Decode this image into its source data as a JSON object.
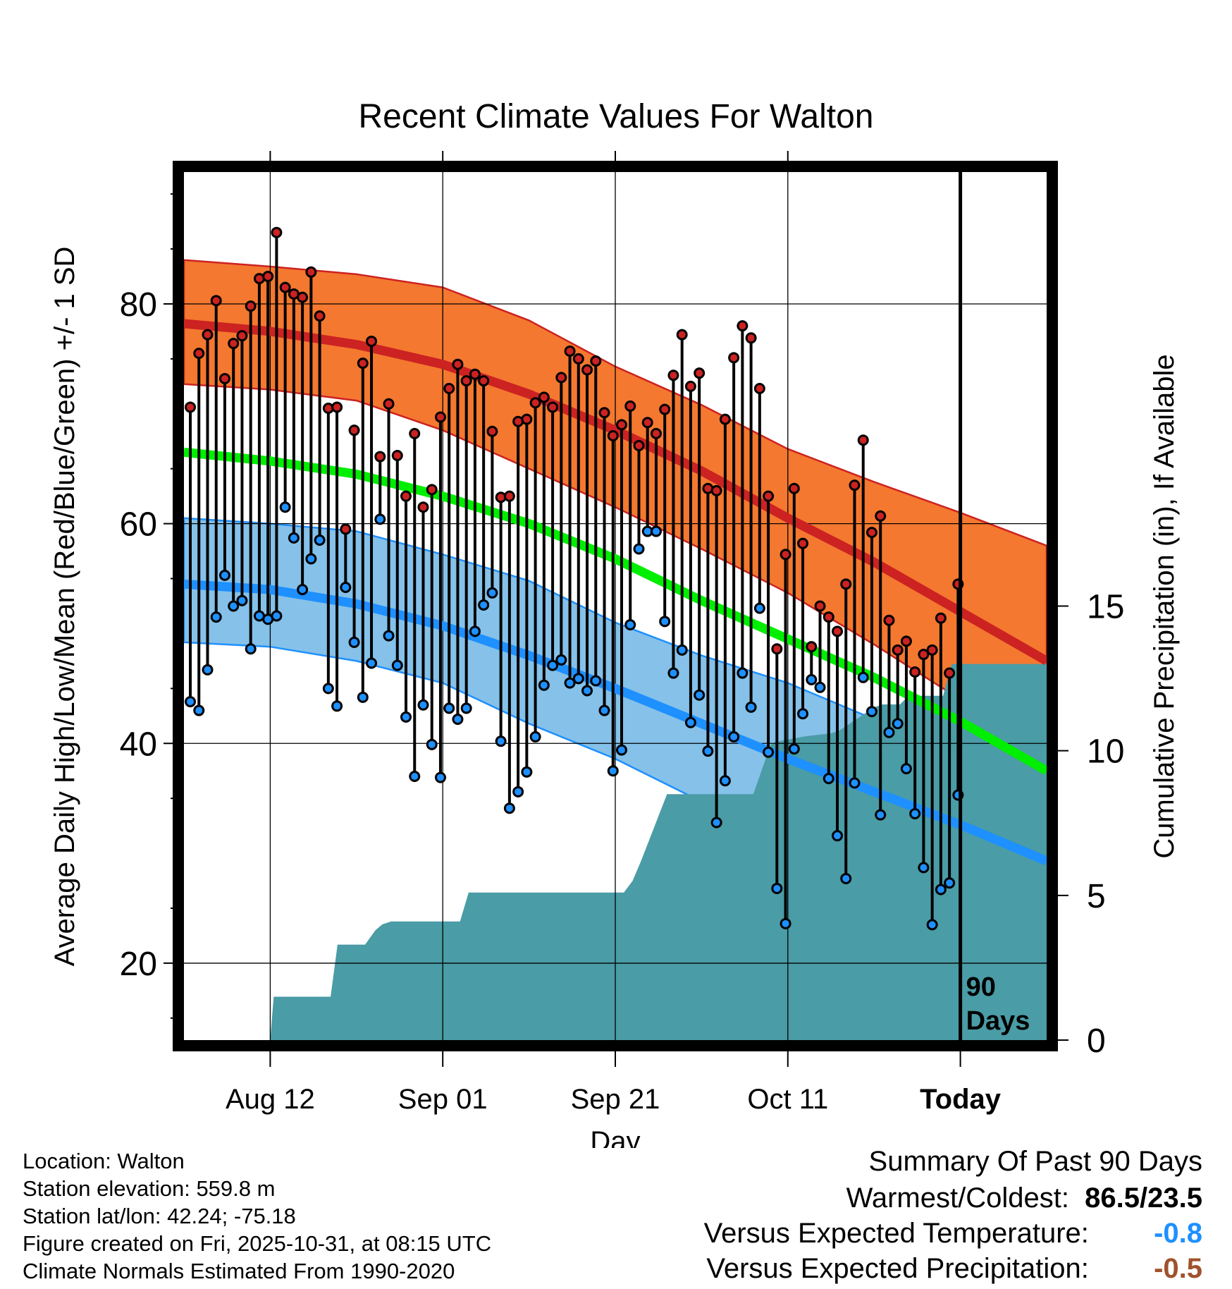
{
  "title": "Recent Climate Values For Walton",
  "footer_left": [
    "Location: Walton",
    "Station elevation: 559.8 m",
    "Station lat/lon: 42.24; -75.18",
    "Figure created on Fri, 2025-10-31, at 08:15 UTC",
    "Climate Normals Estimated From 1990-2020"
  ],
  "summary": {
    "heading": "Summary Of Past 90 Days",
    "warm_cold_label": "Warmest/Coldest:",
    "warm_cold_value": "86.5/23.5",
    "temp_label": "Versus Expected Temperature:",
    "temp_value": "-0.8",
    "prcp_label": "Versus Expected Precipitation:",
    "prcp_value": "-0.5"
  },
  "colors": {
    "high_band": "#F4782F",
    "high_line": "#CC2222",
    "mean_line": "#00EE00",
    "low_band": "#85C1E9",
    "low_line": "#1E90FF",
    "precip_fill": "#4A9CA6",
    "high_marker": "#CC2222",
    "low_marker": "#1E90FF",
    "summary_temp": "#1E90FF",
    "summary_prcp": "#A0522D"
  },
  "chart_data": {
    "type": "line",
    "title": "Recent Climate Values For Walton",
    "xlabel": "Day",
    "ylabel": "Average Daily High/Low/Mean (Red/Blue/Green) +/- 1 SD",
    "y2label": "Cumulative Precipitation (in), If Available",
    "x_range_days": [
      0,
      100
    ],
    "ylim": [
      13,
      92
    ],
    "y2lim": [
      0,
      30
    ],
    "y_ticks": [
      20,
      40,
      60,
      80
    ],
    "y2_ticks": [
      0,
      5,
      10,
      15
    ],
    "x_ticks": [
      {
        "day": 10,
        "label": "Aug 12"
      },
      {
        "day": 30,
        "label": "Sep 01"
      },
      {
        "day": 50,
        "label": "Sep 21"
      },
      {
        "day": 70,
        "label": "Oct 11"
      },
      {
        "day": 90,
        "label": "Today"
      }
    ],
    "today_marker": {
      "day": 90,
      "label_line1": "90",
      "label_line2": "Days"
    },
    "normals": {
      "days": [
        0,
        10,
        20,
        30,
        40,
        50,
        60,
        70,
        80,
        90,
        100
      ],
      "high_mean": [
        78.2,
        77.5,
        76.3,
        74.5,
        71.8,
        68.5,
        64.8,
        60.5,
        56.5,
        52.0,
        47.5
      ],
      "high_sd_upper": [
        84.0,
        83.4,
        82.7,
        81.5,
        78.5,
        74.3,
        70.8,
        66.8,
        63.8,
        61.0,
        58.0
      ],
      "high_sd_lower": [
        72.7,
        72.2,
        71.2,
        68.5,
        65.0,
        61.5,
        57.7,
        53.7,
        49.0,
        44.0,
        38.5
      ],
      "mean": [
        66.5,
        65.7,
        64.5,
        62.5,
        60.0,
        56.8,
        53.0,
        49.5,
        46.0,
        42.0,
        37.5
      ],
      "low_mean": [
        54.5,
        54.0,
        52.7,
        50.7,
        48.0,
        45.0,
        41.8,
        38.6,
        35.6,
        32.6,
        29.3
      ],
      "low_sd_upper": [
        60.5,
        60.0,
        59.3,
        57.2,
        54.8,
        51.0,
        48.0,
        45.5,
        42.2,
        39.0,
        36.5
      ],
      "low_sd_lower": [
        49.2,
        48.8,
        47.5,
        45.5,
        41.8,
        38.6,
        34.7,
        30.5,
        28.5,
        25.0,
        22.5
      ]
    },
    "observed_days": [
      0,
      1,
      2,
      3,
      4,
      5,
      6,
      7,
      8,
      9,
      10,
      11,
      12,
      13,
      14,
      15,
      16,
      17,
      18,
      19,
      20,
      21,
      22,
      23,
      24,
      25,
      26,
      27,
      28,
      29,
      30,
      31,
      32,
      33,
      34,
      35,
      36,
      37,
      38,
      39,
      40,
      41,
      42,
      43,
      44,
      45,
      46,
      47,
      48,
      49,
      50,
      51,
      52,
      53,
      54,
      55,
      56,
      57,
      58,
      59,
      60,
      61,
      62,
      63,
      64,
      65,
      66,
      67,
      68,
      69,
      70,
      71,
      72,
      73,
      74,
      75,
      76,
      77,
      78,
      79,
      80,
      81,
      82,
      83,
      84,
      85,
      86,
      87,
      88,
      89
    ],
    "observed_high": [
      70.6,
      75.5,
      77.2,
      80.3,
      73.2,
      76.4,
      77.1,
      79.8,
      82.3,
      82.5,
      86.5,
      81.5,
      80.9,
      80.6,
      82.9,
      78.9,
      70.5,
      70.6,
      59.5,
      68.5,
      74.6,
      76.6,
      66.1,
      70.9,
      66.2,
      62.5,
      68.2,
      61.5,
      63.1,
      69.7,
      72.3,
      74.5,
      73.0,
      73.6,
      73.0,
      68.4,
      62.4,
      62.5,
      69.3,
      69.5,
      71.0,
      71.5,
      70.6,
      73.3,
      75.7,
      75.0,
      74.0,
      74.8,
      70.1,
      68.0,
      69.0,
      70.7,
      67.1,
      69.2,
      68.2,
      70.4,
      73.5,
      77.2,
      72.5,
      73.7,
      63.2,
      63.0,
      69.5,
      75.1,
      78.0,
      76.9,
      72.3,
      62.5,
      48.6,
      57.2,
      63.2,
      58.2,
      48.8,
      52.5,
      51.5,
      50.2,
      54.5,
      63.5,
      67.6,
      59.2,
      60.7,
      51.2,
      48.5,
      49.3,
      46.5,
      48.1,
      48.5,
      51.4,
      46.4,
      54.5
    ],
    "observed_low": [
      43.8,
      43.0,
      46.7,
      51.5,
      55.3,
      52.5,
      53.0,
      48.6,
      51.6,
      51.3,
      51.6,
      61.5,
      58.7,
      54.0,
      56.8,
      58.5,
      45.0,
      43.4,
      54.2,
      49.2,
      44.2,
      47.3,
      60.4,
      49.8,
      47.1,
      42.4,
      37.0,
      43.5,
      39.9,
      36.9,
      43.2,
      42.2,
      43.2,
      50.2,
      52.6,
      53.7,
      40.2,
      34.1,
      35.6,
      37.4,
      40.6,
      45.3,
      47.1,
      47.6,
      45.5,
      45.9,
      44.8,
      45.7,
      43.0,
      37.5,
      39.4,
      50.8,
      57.7,
      59.3,
      59.3,
      51.1,
      46.4,
      48.5,
      41.9,
      44.4,
      39.3,
      32.8,
      36.6,
      40.6,
      46.4,
      43.3,
      52.3,
      39.2,
      26.8,
      23.6,
      39.5,
      42.7,
      45.8,
      45.1,
      36.8,
      31.6,
      27.7,
      36.4,
      46.0,
      42.9,
      33.5,
      41.0,
      41.8,
      37.7,
      33.6,
      28.7,
      23.5,
      26.7,
      27.3,
      35.3
    ],
    "cumulative_precip": {
      "days": [
        0,
        10,
        10.4,
        17,
        17.8,
        21,
        22.2,
        23,
        24,
        32,
        33,
        34,
        40,
        51,
        52,
        53,
        56,
        66,
        68,
        68.5,
        72,
        75,
        76,
        80,
        81,
        83,
        84,
        88,
        89,
        90,
        100
      ],
      "values": [
        0,
        0,
        1.5,
        1.5,
        3.3,
        3.3,
        3.8,
        4.0,
        4.1,
        4.1,
        5.1,
        5.1,
        5.1,
        5.1,
        5.5,
        6.2,
        8.5,
        8.5,
        10.2,
        10.3,
        10.5,
        10.6,
        10.7,
        11.5,
        11.6,
        11.6,
        11.9,
        11.9,
        13.0,
        13.0,
        13.0
      ]
    }
  }
}
